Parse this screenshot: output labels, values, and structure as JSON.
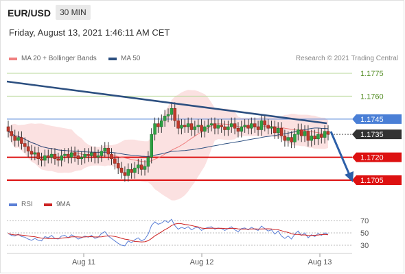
{
  "header": {
    "pair": "EUR/USD",
    "timeframe": "30 MIN",
    "timestamp": "Friday, August 13, 2021 1:46:11 AM CET"
  },
  "legend": {
    "ma20_label": "MA 20 + Bollinger Bands",
    "ma20_color": "#f08080",
    "ma50_label": "MA 50",
    "ma50_color": "#2c4f80",
    "copyright": "Research © 2021 Trading Central"
  },
  "rsi_legend": {
    "rsi_label": "RSI",
    "rsi_color": "#5b7fd6",
    "ma9_label": "9MA",
    "ma9_color": "#cc2222"
  },
  "chart_data": [
    {
      "type": "candlestick",
      "x_labels": [
        "Aug 11",
        "Aug 12",
        "Aug 13"
      ],
      "levels": [
        {
          "value": 1.1775,
          "label": "1.1775",
          "color": "#8cbf5a",
          "style": "resistance-green"
        },
        {
          "value": 1.176,
          "label": "1.1760",
          "color": "#8cbf5a",
          "style": "resistance-green"
        },
        {
          "value": 1.1745,
          "label": "1.1745",
          "color": "#4a7fd6",
          "style": "pivot-blue"
        },
        {
          "value": 1.1735,
          "label": "1.1735",
          "color": "#222222",
          "style": "last-price"
        },
        {
          "value": 1.172,
          "label": "1.1720",
          "color": "#dd1111",
          "style": "support-red"
        },
        {
          "value": 1.1705,
          "label": "1.1705",
          "color": "#dd1111",
          "style": "support-red"
        }
      ],
      "closes": [
        1.1737,
        1.1734,
        1.1731,
        1.1733,
        1.1729,
        1.1727,
        1.1724,
        1.1722,
        1.1723,
        1.1719,
        1.1718,
        1.1721,
        1.172,
        1.1722,
        1.1719,
        1.1718,
        1.1721,
        1.1722,
        1.172,
        1.1723,
        1.1721,
        1.1719,
        1.172,
        1.1722,
        1.1721,
        1.1723,
        1.172,
        1.1721,
        1.1724,
        1.1726,
        1.1722,
        1.1719,
        1.1716,
        1.1713,
        1.171,
        1.1708,
        1.1712,
        1.171,
        1.1713,
        1.1715,
        1.1712,
        1.1714,
        1.172,
        1.1735,
        1.1742,
        1.174,
        1.1744,
        1.1747,
        1.1748,
        1.1752,
        1.1744,
        1.1739,
        1.1741,
        1.174,
        1.1742,
        1.1738,
        1.174,
        1.1741,
        1.1737,
        1.174,
        1.1741,
        1.1742,
        1.1739,
        1.1741,
        1.174,
        1.1738,
        1.174,
        1.1742,
        1.1739,
        1.1737,
        1.174,
        1.1741,
        1.1739,
        1.1742,
        1.174,
        1.1738,
        1.1744,
        1.1741,
        1.1739,
        1.174,
        1.1736,
        1.1739,
        1.1734,
        1.1731,
        1.1733,
        1.173,
        1.1735,
        1.1738,
        1.1734,
        1.1737,
        1.1731,
        1.1734,
        1.1732,
        1.1735,
        1.1733,
        1.1737,
        1.1735
      ],
      "rsi": [
        49,
        46,
        45,
        48,
        44,
        43,
        40,
        38,
        41,
        38,
        37,
        44,
        42,
        46,
        41,
        40,
        45,
        46,
        42,
        47,
        44,
        40,
        42,
        45,
        43,
        46,
        41,
        43,
        49,
        52,
        45,
        41,
        37,
        33,
        30,
        29,
        37,
        34,
        39,
        42,
        37,
        40,
        48,
        62,
        68,
        64,
        66,
        70,
        67,
        72,
        62,
        56,
        59,
        57,
        60,
        55,
        58,
        59,
        54,
        57,
        59,
        60,
        56,
        58,
        57,
        54,
        57,
        60,
        55,
        52,
        57,
        58,
        55,
        59,
        56,
        54,
        61,
        57,
        53,
        55,
        48,
        53,
        45,
        41,
        45,
        40,
        48,
        53,
        46,
        50,
        42,
        47,
        44,
        49,
        46,
        50,
        48
      ],
      "rsi_levels": [
        70,
        50,
        30
      ]
    }
  ]
}
